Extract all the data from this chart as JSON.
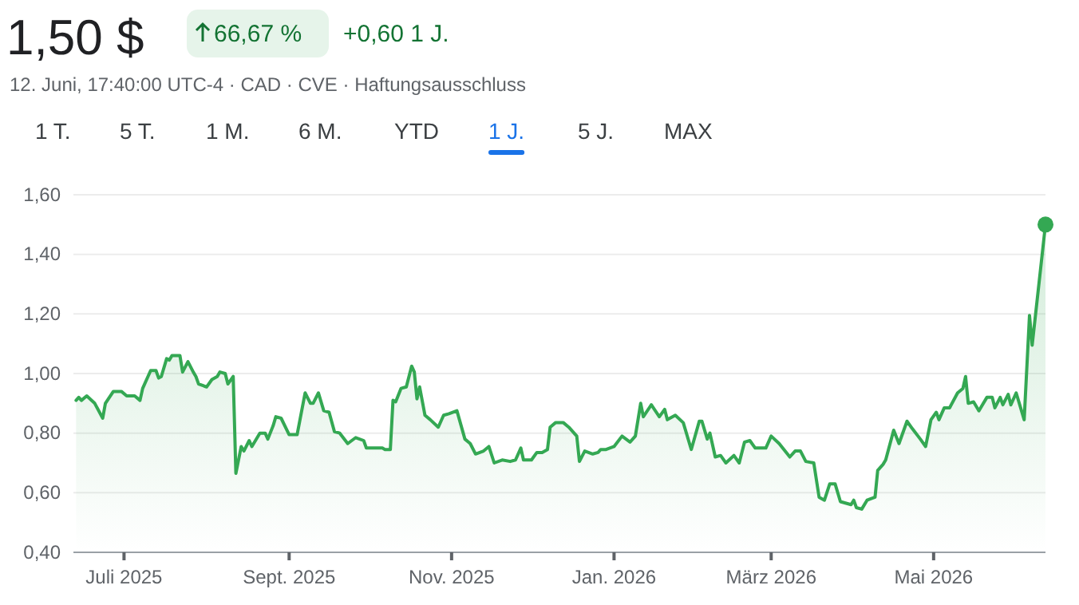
{
  "chart_data": {
    "type": "area",
    "title": "1,50 $",
    "subtitle": "12. Juni, 17:40:00 UTC-4 · CAD · CVE · Haftungsausschluss",
    "annotations": [
      "66,67 %",
      "+0,60 1 J.",
      "1 T.",
      "5 T.",
      "1 M.",
      "6 M.",
      "YTD",
      "1 J.",
      "5 J.",
      "MAX"
    ],
    "xlim": [
      "2025-06-12",
      "2026-06-12"
    ],
    "xticks": [
      {
        "value": "2025-07-01",
        "label": "Juli 2025"
      },
      {
        "value": "2025-09-01",
        "label": "Sept. 2025"
      },
      {
        "value": "2025-11-01",
        "label": "Nov. 2025"
      },
      {
        "value": "2026-01-01",
        "label": "Jan. 2026"
      },
      {
        "value": "2026-03-01",
        "label": "März 2026"
      },
      {
        "value": "2026-05-01",
        "label": "Mai 2026"
      }
    ],
    "ylim": [
      0.4,
      1.6
    ],
    "yticks": [
      {
        "value": 0.4,
        "label": "0,40"
      },
      {
        "value": 0.6,
        "label": "0,60"
      },
      {
        "value": 0.8,
        "label": "0,80"
      },
      {
        "value": 1.0,
        "label": "1,00"
      },
      {
        "value": 1.2,
        "label": "1,20"
      },
      {
        "value": 1.4,
        "label": "1,40"
      },
      {
        "value": 1.6,
        "label": "1,60"
      }
    ],
    "grid": "y",
    "marker": "none",
    "line_style": "solid",
    "x": [
      "2025-06-13",
      "2025-06-14",
      "2025-06-15",
      "2025-06-17",
      "2025-06-20",
      "2025-06-23",
      "2025-06-24",
      "2025-06-27",
      "2025-06-30",
      "2025-07-02",
      "2025-07-05",
      "2025-07-07",
      "2025-07-08",
      "2025-07-11",
      "2025-07-13",
      "2025-07-14",
      "2025-07-15",
      "2025-07-17",
      "2025-07-18",
      "2025-07-19",
      "2025-07-22",
      "2025-07-23",
      "2025-07-25",
      "2025-07-27",
      "2025-07-28",
      "2025-07-29",
      "2025-08-01",
      "2025-08-03",
      "2025-08-05",
      "2025-08-06",
      "2025-08-08",
      "2025-08-09",
      "2025-08-11",
      "2025-08-12",
      "2025-08-14",
      "2025-08-15",
      "2025-08-17",
      "2025-08-18",
      "2025-08-21",
      "2025-08-23",
      "2025-08-24",
      "2025-08-26",
      "2025-08-27",
      "2025-08-29",
      "2025-09-01",
      "2025-09-04",
      "2025-09-07",
      "2025-09-09",
      "2025-09-10",
      "2025-09-12",
      "2025-09-14",
      "2025-09-16",
      "2025-09-18",
      "2025-09-20",
      "2025-09-23",
      "2025-09-26",
      "2025-09-29",
      "2025-09-30",
      "2025-10-06",
      "2025-10-07",
      "2025-10-09",
      "2025-10-10",
      "2025-10-11",
      "2025-10-13",
      "2025-10-15",
      "2025-10-17",
      "2025-10-18",
      "2025-10-19",
      "2025-10-20",
      "2025-10-22",
      "2025-10-24",
      "2025-10-27",
      "2025-10-29",
      "2025-10-31",
      "2025-11-03",
      "2025-11-06",
      "2025-11-08",
      "2025-11-10",
      "2025-11-13",
      "2025-11-15",
      "2025-11-17",
      "2025-11-20",
      "2025-11-23",
      "2025-11-25",
      "2025-11-27",
      "2025-11-28",
      "2025-12-01",
      "2025-12-03",
      "2025-12-05",
      "2025-12-07",
      "2025-12-08",
      "2025-12-10",
      "2025-12-13",
      "2025-12-15",
      "2025-12-18",
      "2025-12-19",
      "2025-12-21",
      "2025-12-24",
      "2025-12-26",
      "2025-12-27",
      "2025-12-29",
      "2026-01-01",
      "2026-01-04",
      "2026-01-07",
      "2026-01-09",
      "2026-01-11",
      "2026-01-12",
      "2026-01-15",
      "2026-01-18",
      "2026-01-20",
      "2026-01-21",
      "2026-01-24",
      "2026-01-27",
      "2026-01-30",
      "2026-02-02",
      "2026-02-03",
      "2026-02-05",
      "2026-02-06",
      "2026-02-08",
      "2026-02-10",
      "2026-02-12",
      "2026-02-15",
      "2026-02-17",
      "2026-02-19",
      "2026-02-21",
      "2026-02-23",
      "2026-02-27",
      "2026-03-01",
      "2026-03-04",
      "2026-03-08",
      "2026-03-10",
      "2026-03-12",
      "2026-03-14",
      "2026-03-17",
      "2026-03-19",
      "2026-03-21",
      "2026-03-23",
      "2026-03-25",
      "2026-03-27",
      "2026-03-31",
      "2026-04-01",
      "2026-04-02",
      "2026-04-04",
      "2026-04-06",
      "2026-04-09",
      "2026-04-10",
      "2026-04-12",
      "2026-04-13",
      "2026-04-16",
      "2026-04-18",
      "2026-04-21",
      "2026-04-23",
      "2026-04-26",
      "2026-04-28",
      "2026-04-30",
      "2026-05-02",
      "2026-05-03",
      "2026-05-05",
      "2026-05-07",
      "2026-05-10",
      "2026-05-12",
      "2026-05-13",
      "2026-05-14",
      "2026-05-16",
      "2026-05-18",
      "2026-05-21",
      "2026-05-23",
      "2026-05-24",
      "2026-05-26",
      "2026-05-27",
      "2026-05-29",
      "2026-05-30",
      "2026-06-01",
      "2026-06-04",
      "2026-06-06",
      "2026-06-07",
      "2026-06-12"
    ],
    "series": [
      {
        "color": "#34a853",
        "values": [
          0.91,
          0.92,
          0.91,
          0.925,
          0.9,
          0.85,
          0.9,
          0.94,
          0.94,
          0.925,
          0.925,
          0.91,
          0.95,
          1.01,
          1.01,
          0.985,
          0.99,
          1.05,
          1.045,
          1.06,
          1.06,
          1.005,
          1.04,
          1.005,
          0.99,
          0.965,
          0.955,
          0.98,
          0.99,
          1.005,
          1.0,
          0.965,
          0.99,
          0.665,
          0.755,
          0.74,
          0.775,
          0.755,
          0.8,
          0.8,
          0.78,
          0.825,
          0.855,
          0.85,
          0.795,
          0.795,
          0.935,
          0.9,
          0.9,
          0.935,
          0.875,
          0.87,
          0.805,
          0.8,
          0.765,
          0.785,
          0.775,
          0.75,
          0.75,
          0.745,
          0.745,
          0.91,
          0.905,
          0.95,
          0.955,
          1.025,
          1.005,
          0.915,
          0.955,
          0.86,
          0.845,
          0.82,
          0.86,
          0.865,
          0.875,
          0.78,
          0.765,
          0.73,
          0.74,
          0.755,
          0.7,
          0.71,
          0.705,
          0.71,
          0.75,
          0.71,
          0.71,
          0.735,
          0.735,
          0.745,
          0.82,
          0.835,
          0.835,
          0.82,
          0.79,
          0.705,
          0.74,
          0.73,
          0.735,
          0.745,
          0.745,
          0.755,
          0.79,
          0.77,
          0.79,
          0.9,
          0.855,
          0.895,
          0.855,
          0.88,
          0.845,
          0.86,
          0.835,
          0.745,
          0.84,
          0.84,
          0.78,
          0.8,
          0.72,
          0.725,
          0.7,
          0.725,
          0.7,
          0.77,
          0.775,
          0.75,
          0.75,
          0.79,
          0.765,
          0.72,
          0.74,
          0.74,
          0.705,
          0.7,
          0.585,
          0.575,
          0.63,
          0.63,
          0.57,
          0.56,
          0.575,
          0.55,
          0.545,
          0.575,
          0.585,
          0.675,
          0.695,
          0.71,
          0.81,
          0.765,
          0.84,
          0.815,
          0.78,
          0.755,
          0.845,
          0.87,
          0.845,
          0.885,
          0.885,
          0.935,
          0.95,
          0.99,
          0.9,
          0.905,
          0.875,
          0.92,
          0.92,
          0.885,
          0.92,
          0.895,
          0.93,
          0.895,
          0.935,
          0.845,
          1.195,
          1.095,
          1.5
        ]
      }
    ]
  }
}
